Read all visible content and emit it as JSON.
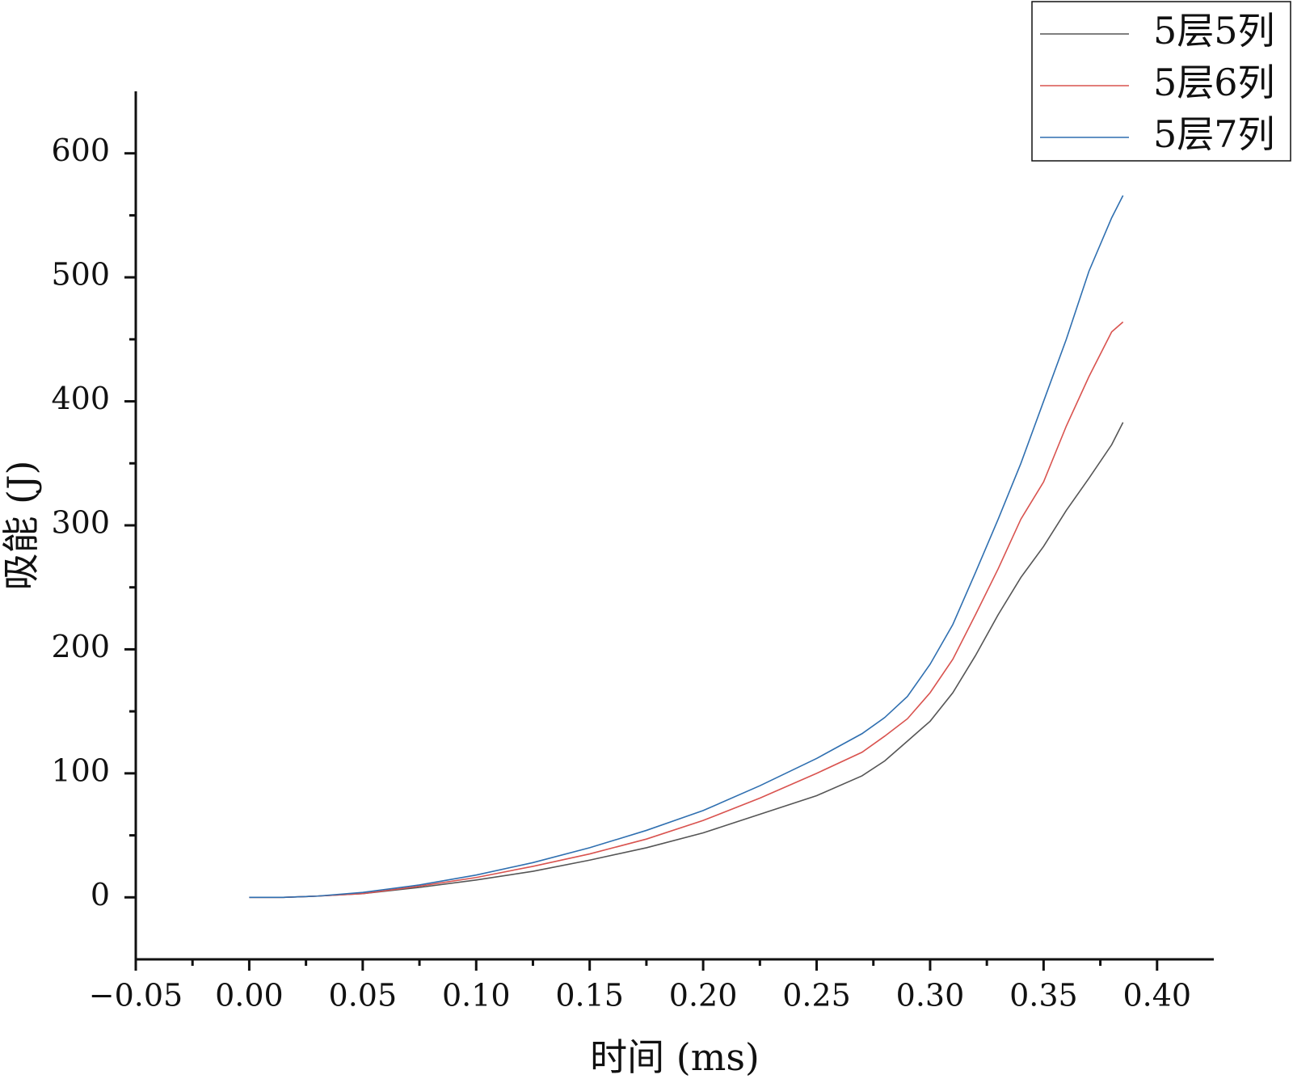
{
  "chart_data": {
    "type": "line",
    "x_label": "时间 (ms)",
    "y_label": "吸能 (J)",
    "x": [
      0,
      0.015,
      0.03,
      0.05,
      0.075,
      0.1,
      0.125,
      0.15,
      0.175,
      0.2,
      0.225,
      0.25,
      0.27,
      0.28,
      0.29,
      0.3,
      0.31,
      0.32,
      0.33,
      0.34,
      0.35,
      0.36,
      0.37,
      0.38,
      0.385
    ],
    "series": [
      {
        "name": "5层5列",
        "color": "#555555",
        "values": [
          0,
          0,
          1,
          3,
          8,
          14,
          21,
          30,
          40,
          52,
          67,
          82,
          98,
          110,
          126,
          142,
          165,
          195,
          228,
          258,
          283,
          312,
          338,
          365,
          383
        ]
      },
      {
        "name": "5层6列",
        "color": "#d9534f",
        "values": [
          0,
          0,
          1,
          3,
          9,
          16,
          25,
          35,
          47,
          62,
          80,
          100,
          117,
          130,
          144,
          165,
          192,
          228,
          265,
          305,
          335,
          380,
          420,
          456,
          464
        ]
      },
      {
        "name": "5层7列",
        "color": "#2f6fb0",
        "values": [
          0,
          0,
          1,
          4,
          10,
          18,
          28,
          40,
          54,
          70,
          90,
          112,
          132,
          145,
          162,
          188,
          220,
          262,
          305,
          350,
          400,
          450,
          505,
          548,
          566
        ]
      }
    ],
    "xlim": [
      -0.05,
      0.425
    ],
    "xticks": [
      {
        "value": -0.05,
        "label": "−0.05"
      },
      {
        "value": 0,
        "label": "0.00"
      },
      {
        "value": 0.05,
        "label": "0.05"
      },
      {
        "value": 0.1,
        "label": "0.10"
      },
      {
        "value": 0.15,
        "label": "0.15"
      },
      {
        "value": 0.2,
        "label": "0.20"
      },
      {
        "value": 0.25,
        "label": "0.25"
      },
      {
        "value": 0.3,
        "label": "0.30"
      },
      {
        "value": 0.35,
        "label": "0.35"
      },
      {
        "value": 0.4,
        "label": "0.40"
      }
    ],
    "ylim": [
      -50,
      650
    ],
    "yticks": [
      0,
      100,
      200,
      300,
      400,
      500,
      600
    ],
    "legend": "top-right",
    "grid": false
  }
}
